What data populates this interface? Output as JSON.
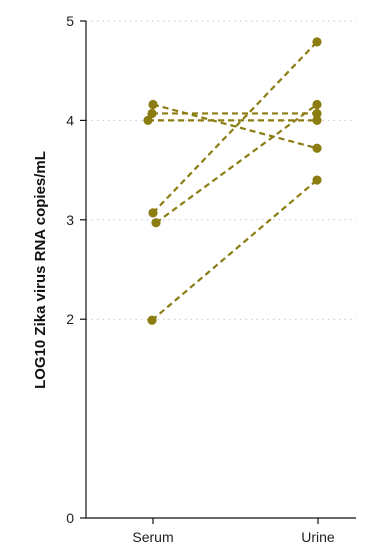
{
  "chart_data": {
    "type": "line",
    "title": "",
    "xlabel": "",
    "ylabel": "LOG10 Zika virus RNA copies/mL",
    "categories": [
      "Serum",
      "Urine"
    ],
    "ylim": [
      0,
      5
    ],
    "yticks": [
      "0",
      "2",
      "3",
      "4",
      "5"
    ],
    "grid": true,
    "line_style": "dashed",
    "color": "#8b7d12",
    "series": [
      {
        "values": [
          4.16,
          3.72
        ]
      },
      {
        "values": [
          4.07,
          4.07
        ]
      },
      {
        "values": [
          4.0,
          4.0
        ]
      },
      {
        "values": [
          3.07,
          4.79
        ]
      },
      {
        "values": [
          2.97,
          4.16
        ]
      },
      {
        "values": [
          1.99,
          3.4
        ]
      }
    ]
  }
}
